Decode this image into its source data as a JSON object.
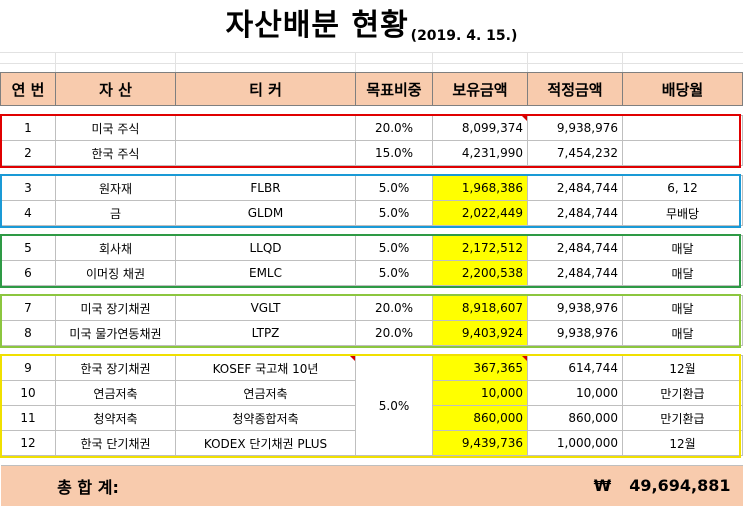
{
  "title": {
    "main": "자산배분 현황",
    "date": "(2019. 4. 15.)"
  },
  "headers": [
    "연 번",
    "자 산",
    "티 커",
    "목표비중",
    "보유금액",
    "적정금액",
    "배당월"
  ],
  "groups": [
    {
      "color": "#e00000",
      "rows": [
        {
          "no": "1",
          "asset": "미국 주식",
          "ticker": "",
          "target": "20.0%",
          "holding": "8,099,374",
          "proper": "9,938,976",
          "dividend": "",
          "hl": false
        },
        {
          "no": "2",
          "asset": "한국 주식",
          "ticker": "",
          "target": "15.0%",
          "holding": "4,231,990",
          "proper": "7,454,232",
          "dividend": "",
          "hl": false
        }
      ]
    },
    {
      "color": "#1a9ad6",
      "rows": [
        {
          "no": "3",
          "asset": "원자재",
          "ticker": "FLBR",
          "target": "5.0%",
          "holding": "1,968,386",
          "proper": "2,484,744",
          "dividend": "6, 12",
          "hl": true
        },
        {
          "no": "4",
          "asset": "금",
          "ticker": "GLDM",
          "target": "5.0%",
          "holding": "2,022,449",
          "proper": "2,484,744",
          "dividend": "무배당",
          "hl": true
        }
      ]
    },
    {
      "color": "#2e9a45",
      "rows": [
        {
          "no": "5",
          "asset": "회사채",
          "ticker": "LLQD",
          "target": "5.0%",
          "holding": "2,172,512",
          "proper": "2,484,744",
          "dividend": "매달",
          "hl": true
        },
        {
          "no": "6",
          "asset": "이머징 채권",
          "ticker": "EMLC",
          "target": "5.0%",
          "holding": "2,200,538",
          "proper": "2,484,744",
          "dividend": "매달",
          "hl": true
        }
      ]
    },
    {
      "color": "#8cc63f",
      "rows": [
        {
          "no": "7",
          "asset": "미국 장기채권",
          "ticker": "VGLT",
          "target": "20.0%",
          "holding": "8,918,607",
          "proper": "9,938,976",
          "dividend": "매달",
          "hl": true
        },
        {
          "no": "8",
          "asset": "미국 물가연동채권",
          "ticker": "LTPZ",
          "target": "20.0%",
          "holding": "9,403,924",
          "proper": "9,938,976",
          "dividend": "매달",
          "hl": true
        }
      ]
    }
  ],
  "last_group": {
    "color": "#f0e000",
    "target_merged": "5.0%",
    "rows": [
      {
        "no": "9",
        "asset": "한국 장기채권",
        "ticker": "KOSEF 국고채 10년",
        "holding": "367,365",
        "proper": "614,744",
        "dividend": "12월"
      },
      {
        "no": "10",
        "asset": "연금저축",
        "ticker": "연금저축",
        "holding": "10,000",
        "proper": "10,000",
        "dividend": "만기환급"
      },
      {
        "no": "11",
        "asset": "청약저축",
        "ticker": "청약종합저축",
        "holding": "860,000",
        "proper": "860,000",
        "dividend": "만기환급"
      },
      {
        "no": "12",
        "asset": "한국 단기채권",
        "ticker": "KODEX 단기채권 PLUS",
        "holding": "9,439,736",
        "proper": "1,000,000",
        "dividend": "12월"
      }
    ]
  },
  "total": {
    "label": "총 합 계:",
    "currency": "₩",
    "amount": "49,694,881"
  }
}
